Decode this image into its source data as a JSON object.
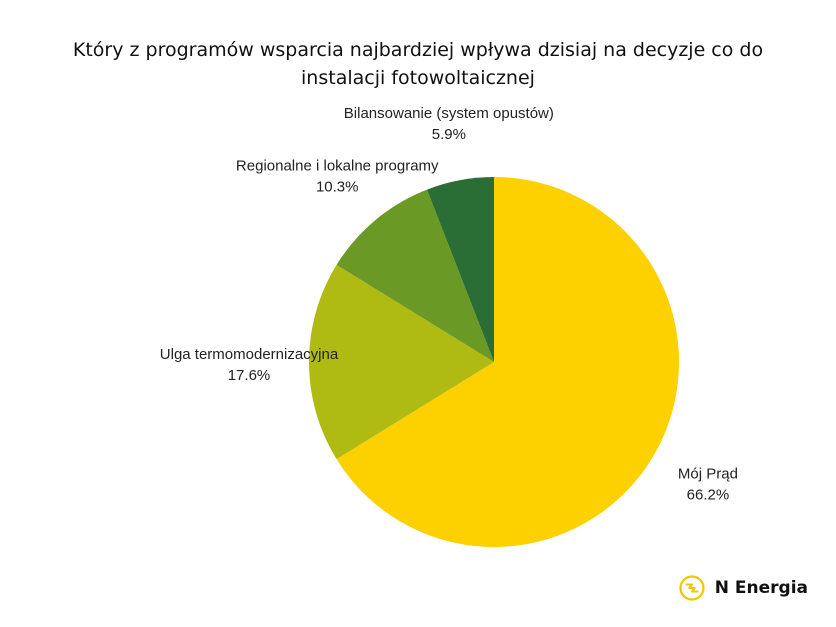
{
  "colors": {
    "moj_prad": "#FDD000",
    "ulga": "#AFBA12",
    "regionalne": "#6A9A25",
    "bilansowanie": "#2B6E35",
    "brand_accent": "#F4C400"
  },
  "chart_data": {
    "type": "pie",
    "title_lines": [
      "Który z programów wsparcia najbardziej wpływa dzisiaj na decyzje co do",
      "instalacji fotowoltaicznej"
    ],
    "start": "top",
    "direction": "clockwise",
    "slices": [
      {
        "label": "Mój Prąd",
        "value": 66.2,
        "value_label": "66.2%",
        "color": "#FDD000"
      },
      {
        "label": "Ulga termomodernizacyjna",
        "value": 17.6,
        "value_label": "17.6%",
        "color": "#AFBA12"
      },
      {
        "label": "Regionalne i lokalne programy",
        "value": 10.3,
        "value_label": "10.3%",
        "color": "#6A9A25"
      },
      {
        "label": "Bilansowanie (system opustów)",
        "value": 5.9,
        "value_label": "5.9%",
        "color": "#2B6E35"
      }
    ]
  },
  "brand": {
    "name": "N Energia",
    "logo_icon": "n-energia-logo-icon"
  }
}
